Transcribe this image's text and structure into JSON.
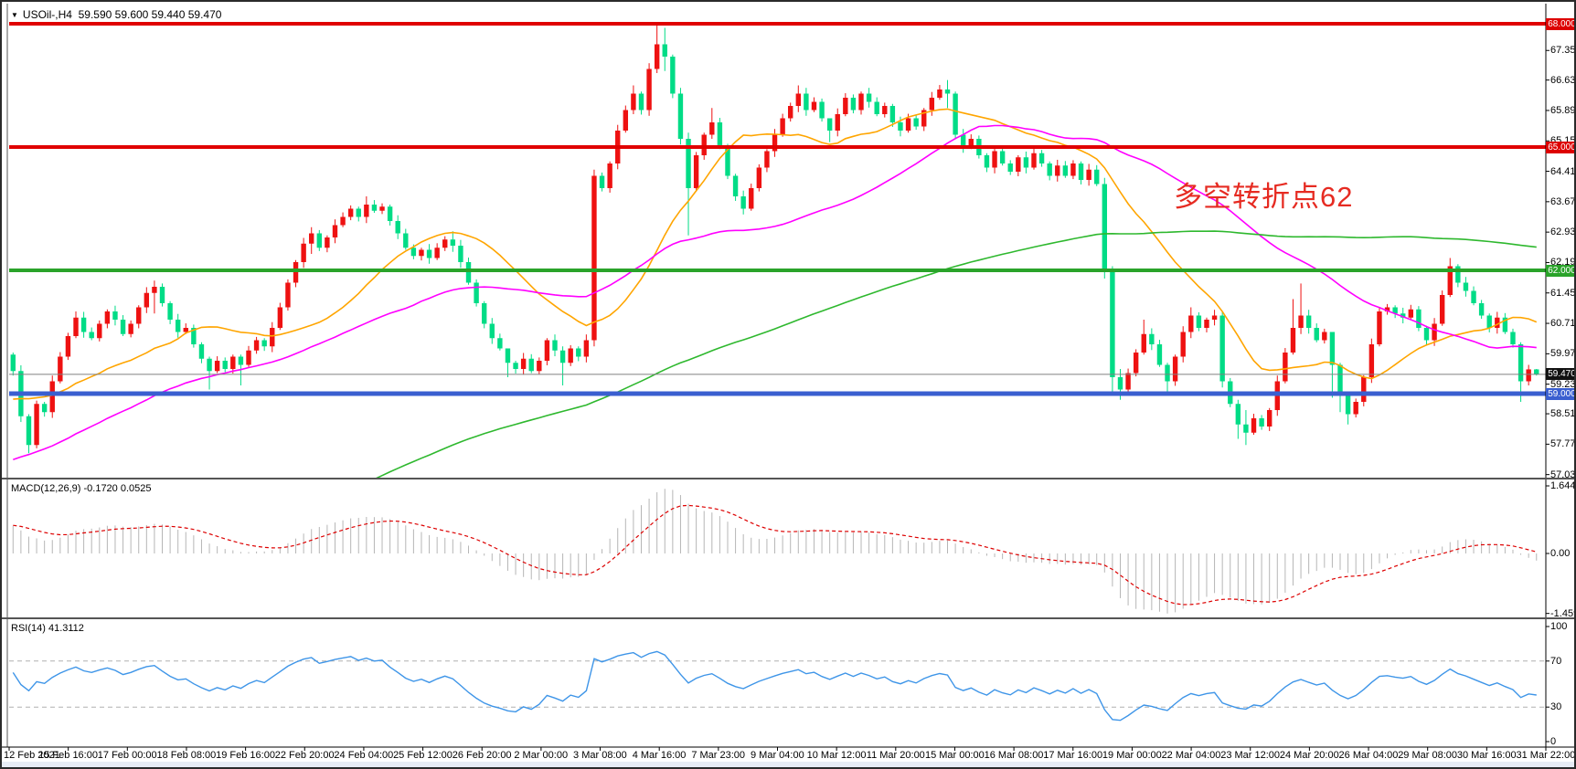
{
  "title": {
    "symbol": "USOil-,H4",
    "ohlc": "59.590 59.600 59.440 59.470",
    "dropdown_icon": "symbol-dropdown"
  },
  "annotation": {
    "text": "多空转折点62",
    "color": "#e62b22"
  },
  "price_axis": {
    "ticks": [
      "68.000",
      "67.350",
      "66.630",
      "65.890",
      "65.150",
      "64.410",
      "63.670",
      "62.930",
      "62.190",
      "61.450",
      "60.710",
      "59.970",
      "59.230",
      "58.510",
      "57.770",
      "57.030"
    ],
    "badges": [
      {
        "label": "68.000",
        "value": 68.0,
        "bg": "#dd0000"
      },
      {
        "label": "65.000",
        "value": 65.0,
        "bg": "#dd0000"
      },
      {
        "label": "62.000",
        "value": 62.0,
        "bg": "#2aa32a"
      },
      {
        "label": "59.470",
        "value": 59.47,
        "bg": "#111111"
      },
      {
        "label": "59.000",
        "value": 59.0,
        "bg": "#3a5fd0"
      }
    ]
  },
  "time_axis": {
    "labels": [
      "12 Feb 2021",
      "15 Feb 16:00",
      "17 Feb 00:00",
      "18 Feb 08:00",
      "19 Feb 16:00",
      "22 Feb 20:00",
      "24 Feb 04:00",
      "25 Feb 12:00",
      "26 Feb 20:00",
      "2 Mar 00:00",
      "3 Mar 08:00",
      "4 Mar 16:00",
      "7 Mar 23:00",
      "9 Mar 04:00",
      "10 Mar 12:00",
      "11 Mar 20:00",
      "15 Mar 00:00",
      "16 Mar 08:00",
      "17 Mar 16:00",
      "19 Mar 00:00",
      "22 Mar 04:00",
      "23 Mar 12:00",
      "24 Mar 20:00",
      "26 Mar 04:00",
      "29 Mar 08:00",
      "30 Mar 16:00",
      "31 Mar 22:00"
    ]
  },
  "indicators": {
    "macd": {
      "label": "MACD(12,26,9)",
      "values": "-0.1720 0.0525",
      "params": [
        12,
        26,
        9
      ],
      "scale_labels": [
        "1.6446",
        "0.00",
        "-1.4594"
      ],
      "hist_color": "#b6b6b6",
      "signal_color": "#dd0000"
    },
    "rsi": {
      "label": "RSI(14)",
      "value": "41.3112",
      "period": 14,
      "scale_labels": [
        "100",
        "70",
        "30",
        "0"
      ],
      "levels": [
        70,
        30
      ],
      "line_color": "#3e95e8"
    }
  },
  "chart_data": {
    "type": "candlestick",
    "symbol": "USOil",
    "timeframe": "H4",
    "title": "USOil-,H4",
    "x_range": "12 Feb 2021 - 31 Mar 2021",
    "y_range": [
      57.03,
      68.3
    ],
    "last_bar": {
      "open": 59.59,
      "high": 59.6,
      "low": 59.44,
      "close": 59.47
    },
    "up_color": "#ee1111",
    "down_color": "#00dc86",
    "first_open": 59.95,
    "closes": [
      59.55,
      58.45,
      57.75,
      58.75,
      58.55,
      59.3,
      59.9,
      60.4,
      60.85,
      60.5,
      60.35,
      60.7,
      61.0,
      60.8,
      60.45,
      60.7,
      61.1,
      61.45,
      61.6,
      61.2,
      60.8,
      60.5,
      60.6,
      60.2,
      59.85,
      59.55,
      59.8,
      59.6,
      59.9,
      59.7,
      60.05,
      60.3,
      60.15,
      60.6,
      61.1,
      61.7,
      62.2,
      62.65,
      62.9,
      62.55,
      62.8,
      63.1,
      63.3,
      63.5,
      63.3,
      63.6,
      63.45,
      63.55,
      63.2,
      62.9,
      62.55,
      62.35,
      62.5,
      62.3,
      62.55,
      62.75,
      62.6,
      62.2,
      61.7,
      61.2,
      60.7,
      60.35,
      60.1,
      59.75,
      59.6,
      59.85,
      59.55,
      59.8,
      60.3,
      60.05,
      59.75,
      60.1,
      59.9,
      60.3,
      64.3,
      64.0,
      64.6,
      65.4,
      65.9,
      66.3,
      65.9,
      66.9,
      67.5,
      67.2,
      66.3,
      65.2,
      64.0,
      64.8,
      65.3,
      65.6,
      65.0,
      64.3,
      63.8,
      63.5,
      64.0,
      64.5,
      64.9,
      65.3,
      65.7,
      66.0,
      66.3,
      65.9,
      66.1,
      65.7,
      65.4,
      65.8,
      66.2,
      65.9,
      66.3,
      66.1,
      65.8,
      66.0,
      65.6,
      65.4,
      65.7,
      65.5,
      65.9,
      66.2,
      66.4,
      66.3,
      65.3,
      65.0,
      65.2,
      64.8,
      64.5,
      64.9,
      64.6,
      64.4,
      64.75,
      64.5,
      64.85,
      64.6,
      64.3,
      64.55,
      64.3,
      64.6,
      64.2,
      64.45,
      64.1,
      62.0,
      59.4,
      59.1,
      59.5,
      60.0,
      60.45,
      60.2,
      59.7,
      59.3,
      59.9,
      60.5,
      60.9,
      60.6,
      60.8,
      60.9,
      59.3,
      58.75,
      58.25,
      58.05,
      58.4,
      58.2,
      58.6,
      59.3,
      60.0,
      60.6,
      60.9,
      60.6,
      60.3,
      60.5,
      59.7,
      59.0,
      58.5,
      58.8,
      59.4,
      60.2,
      61.0,
      61.1,
      60.95,
      60.85,
      61.05,
      60.6,
      60.3,
      60.7,
      61.4,
      62.1,
      61.7,
      61.5,
      61.2,
      60.9,
      60.6,
      60.85,
      60.5,
      60.2,
      59.3,
      59.59,
      59.47
    ],
    "wicks": {
      "2": [
        58.5,
        57.55
      ],
      "8": [
        61.0,
        60.35
      ],
      "18": [
        61.75,
        60.95
      ],
      "25": [
        59.9,
        59.1
      ],
      "29": [
        59.95,
        59.2
      ],
      "38": [
        63.05,
        62.4
      ],
      "45": [
        63.8,
        63.15
      ],
      "56": [
        62.95,
        62.45
      ],
      "63": [
        59.9,
        59.4
      ],
      "70": [
        60.15,
        59.2
      ],
      "74": [
        64.45,
        60.15
      ],
      "79": [
        66.5,
        65.8
      ],
      "82": [
        68.0,
        66.8
      ],
      "83": [
        67.9,
        66.85
      ],
      "86": [
        65.35,
        62.85
      ],
      "89": [
        65.95,
        65.2
      ],
      "100": [
        66.5,
        65.85
      ],
      "104": [
        65.5,
        65.12
      ],
      "119": [
        66.63,
        65.95
      ],
      "139": [
        64.25,
        61.8
      ],
      "140": [
        62.1,
        59.05
      ],
      "141": [
        59.6,
        58.85
      ],
      "144": [
        60.8,
        59.95
      ],
      "147": [
        59.75,
        58.95
      ],
      "150": [
        61.1,
        60.35
      ],
      "154": [
        61.0,
        59.15
      ],
      "156": [
        58.85,
        57.9
      ],
      "157": [
        58.6,
        57.75
      ],
      "163": [
        61.3,
        59.95
      ],
      "164": [
        61.68,
        60.45
      ],
      "168": [
        60.0,
        58.9
      ],
      "169": [
        59.75,
        58.55
      ],
      "170": [
        59.05,
        58.25
      ],
      "183": [
        62.3,
        61.35
      ],
      "192": [
        60.25,
        58.8
      ],
      "193": [
        59.7,
        59.2
      ],
      "194": [
        59.6,
        59.44
      ]
    },
    "levels": [
      {
        "price": 68.0,
        "color": "#e00000",
        "width": 4,
        "name": "resistance-68"
      },
      {
        "price": 65.0,
        "color": "#e00000",
        "width": 4,
        "name": "resistance-65"
      },
      {
        "price": 62.0,
        "color": "#2aa32a",
        "width": 4,
        "name": "pivot-62"
      },
      {
        "price": 59.0,
        "color": "#3a5fd0",
        "width": 5,
        "name": "support-59"
      },
      {
        "price": 59.47,
        "color": "#808080",
        "width": 1,
        "name": "current-price-line"
      }
    ],
    "moving_averages": [
      {
        "period": 20,
        "color": "#ffa500",
        "name": "ma-fast-orange"
      },
      {
        "period": 50,
        "color": "#ff00ff",
        "name": "ma-mid-magenta"
      },
      {
        "period": 144,
        "color": "#2eb82e",
        "name": "ma-slow-green"
      }
    ]
  }
}
